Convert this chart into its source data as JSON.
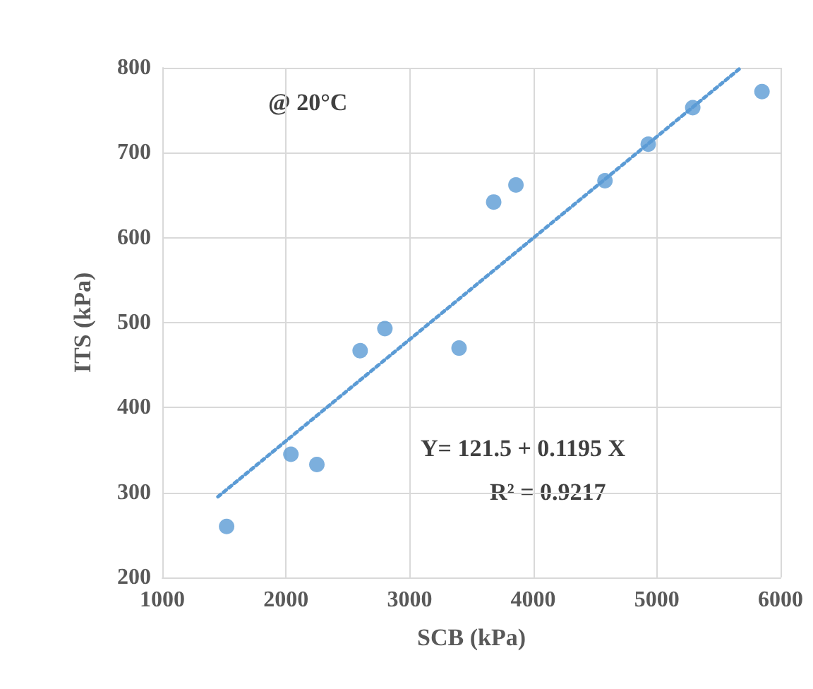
{
  "chart_data": {
    "type": "scatter",
    "xlabel": "SCB (kPa)",
    "ylabel": "ITS (kPa)",
    "annotations": [
      "@ 20°C",
      "Y= 121.5 + 0.1195 X",
      "R² = 0.9217"
    ],
    "series": [
      {
        "color": "#5b9bd5",
        "marker": "circle",
        "x": [
          1520,
          2040,
          2250,
          2600,
          2800,
          3400,
          3680,
          3860,
          4580,
          4930,
          5290,
          5850
        ],
        "values": [
          260,
          345,
          333,
          467,
          493,
          470,
          642,
          662,
          667,
          710,
          753,
          772
        ]
      },
      {
        "type": "line",
        "color": "#5b9bd5",
        "line_style": "dotted",
        "marker": "none",
        "x": [
          1450,
          5670
        ],
        "values": [
          295,
          799
        ]
      }
    ],
    "xlim": [
      1000,
      6000
    ],
    "xticks": [
      1000,
      2000,
      3000,
      4000,
      5000,
      6000
    ],
    "ylim": [
      200,
      800
    ],
    "yticks": [
      200,
      300,
      400,
      500,
      600,
      700,
      800
    ],
    "grid": true
  }
}
